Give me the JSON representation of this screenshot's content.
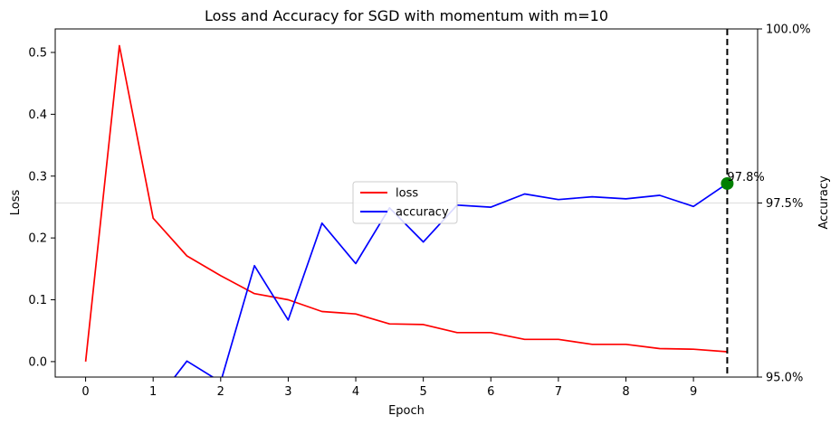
{
  "chart_data": {
    "type": "line",
    "title": "Loss and Accuracy for SGD with momentum with m=10",
    "xlabel": "Epoch",
    "ylabel": "Loss",
    "y2label": "Accuracy",
    "xlim": [
      -0.45,
      9.95
    ],
    "ylim": [
      -0.025,
      0.538
    ],
    "y2lim": [
      95.0,
      100.0
    ],
    "xticks": [
      0,
      1,
      2,
      3,
      4,
      5,
      6,
      7,
      8,
      9
    ],
    "yticks": [
      0.0,
      0.1,
      0.2,
      0.3,
      0.4,
      0.5
    ],
    "yticklabels": [
      "0.0",
      "0.1",
      "0.2",
      "0.3",
      "0.4",
      "0.5"
    ],
    "y2ticks": [
      95.0,
      97.5,
      100.0
    ],
    "y2ticklabels": [
      "95.0%",
      "97.5%",
      "100.0%"
    ],
    "series": [
      {
        "name": "loss",
        "axis": "left",
        "color": "#ff0000",
        "x": [
          0,
          0.5,
          1,
          1.5,
          2,
          2.5,
          3,
          3.5,
          4,
          4.5,
          5,
          5.5,
          6,
          6.5,
          7,
          7.5,
          8,
          8.5,
          9,
          9.5
        ],
        "values": [
          0.0,
          0.511,
          0.232,
          0.171,
          0.139,
          0.11,
          0.1,
          0.081,
          0.077,
          0.061,
          0.06,
          0.047,
          0.047,
          0.036,
          0.036,
          0.028,
          0.028,
          0.021,
          0.02,
          0.016
        ]
      },
      {
        "name": "accuracy",
        "axis": "right",
        "color": "#0000ff",
        "x": [
          1.0,
          1.5,
          2,
          2.5,
          3,
          3.5,
          4,
          4.5,
          5,
          5.5,
          6,
          6.5,
          7,
          7.5,
          8,
          8.5,
          9,
          9.5
        ],
        "values": [
          94.6,
          95.23,
          94.93,
          96.6,
          95.82,
          97.21,
          96.63,
          97.43,
          96.94,
          97.47,
          97.44,
          97.63,
          97.55,
          97.59,
          97.56,
          97.61,
          97.45,
          97.78
        ]
      }
    ],
    "annotations": [
      {
        "type": "vline",
        "x": 9.5,
        "style": "dashed",
        "color": "#000000"
      },
      {
        "type": "marker",
        "x": 9.5,
        "y": 97.78,
        "axis": "right",
        "color": "#008000",
        "text": "97.8%"
      },
      {
        "type": "hline",
        "y": 97.5,
        "axis": "right",
        "color": "#dddddd"
      }
    ],
    "legend": {
      "position": "center-right",
      "entries": [
        "loss",
        "accuracy"
      ]
    }
  }
}
